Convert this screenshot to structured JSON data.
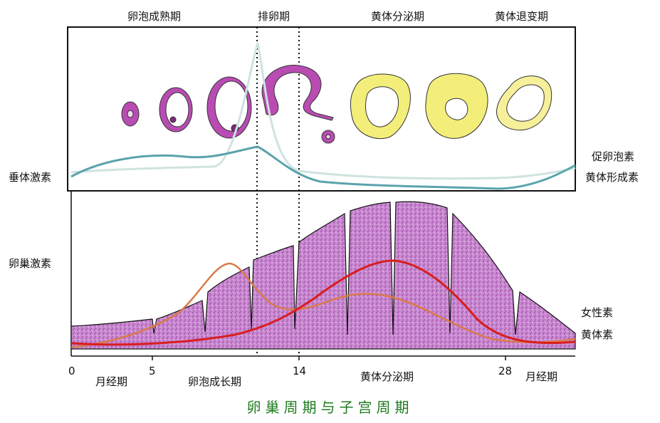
{
  "phases_top": {
    "maturation": "卵泡成熟期",
    "ovulation": "排卵期",
    "luteal": "黄体分泌期",
    "regression": "黄体退变期"
  },
  "left_labels": {
    "pituitary": "垂体激素",
    "ovarian": "卵巢激素"
  },
  "right_labels": {
    "fsh": "促卵泡素",
    "lh": "黄体形成素",
    "estrogen": "女性素",
    "progesterone": "黄体素"
  },
  "days": {
    "d0": "0",
    "d5": "5",
    "d14": "14",
    "d28": "28"
  },
  "bottom_phases": {
    "menstrual_1": "月经期",
    "follicular": "卵泡成长期",
    "secretory": "黄体分泌期",
    "menstrual_2": "月经期"
  },
  "caption": "卵巢周期与子宫周期",
  "colors": {
    "fsh": "#cfe3e0",
    "lh": "#5aa3ad",
    "estrogen": "#d97a4a",
    "progesterone": "#d81e1e",
    "endometrium": "#b970c0",
    "corpus_luteum": "#f3ee7a",
    "follicle_wall": "#b94cb3",
    "caption": "#1f7a1f"
  }
}
